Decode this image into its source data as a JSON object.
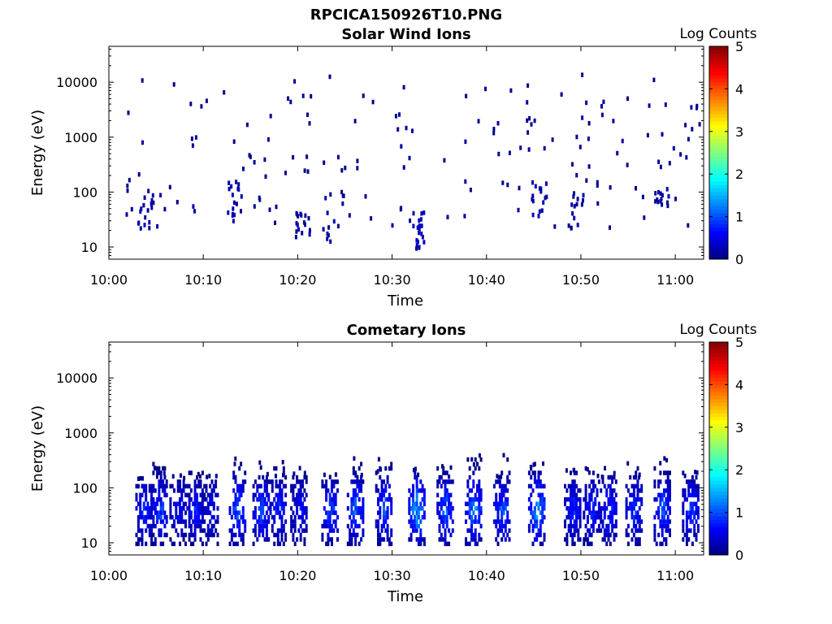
{
  "figure": {
    "title": "RPCICA150926T10.PNG"
  },
  "chart_data": [
    {
      "type": "heatmap",
      "title": "Solar Wind Ions",
      "xlabel": "Time",
      "ylabel": "Energy (eV)",
      "x_ticks": [
        "10:00",
        "10:10",
        "10:20",
        "10:30",
        "10:40",
        "10:50",
        "11:00"
      ],
      "x_range_minutes": [
        0,
        63
      ],
      "y_scale": "log",
      "y_ticks": [
        "10",
        "100",
        "1000",
        "10000"
      ],
      "y_range": [
        6,
        45000
      ],
      "colorbar": {
        "label": "Log Counts",
        "ticks": [
          "0",
          "1",
          "2",
          "3",
          "4",
          "5"
        ],
        "range": [
          0,
          5
        ],
        "colormap": "jet"
      },
      "description_of_values": "Sparse isolated single counts (log value ~0) scattered 10 eV–12000 eV; denser low-level clusters at 10–100 eV near 10:13, 10:21, 10:32, 10:45",
      "clusters": [
        {
          "t": 3.8,
          "emin": 15,
          "emax": 100,
          "level": 0.1,
          "density": 0.5
        },
        {
          "t": 13.2,
          "emin": 25,
          "emax": 170,
          "level": 0.15,
          "density": 0.6
        },
        {
          "t": 20.5,
          "emin": 15,
          "emax": 45,
          "level": 0.1,
          "density": 0.5
        },
        {
          "t": 23.5,
          "emin": 12,
          "emax": 100,
          "level": 0.1,
          "density": 0.5
        },
        {
          "t": 32.5,
          "emin": 9,
          "emax": 45,
          "level": 0.2,
          "density": 0.8
        },
        {
          "t": 45.5,
          "emin": 30,
          "emax": 170,
          "level": 0.15,
          "density": 0.6
        },
        {
          "t": 49.5,
          "emin": 20,
          "emax": 100,
          "level": 0.1,
          "density": 0.4
        },
        {
          "t": 58.5,
          "emin": 40,
          "emax": 120,
          "level": 0.1,
          "density": 0.4
        }
      ],
      "sparse_points": 170
    },
    {
      "type": "heatmap",
      "title": "Cometary Ions",
      "xlabel": "Time",
      "ylabel": "Energy (eV)",
      "x_ticks": [
        "10:00",
        "10:10",
        "10:20",
        "10:30",
        "10:40",
        "10:50",
        "11:00"
      ],
      "x_range_minutes": [
        0,
        63
      ],
      "y_scale": "log",
      "y_ticks": [
        "10",
        "100",
        "1000",
        "10000"
      ],
      "y_range": [
        6,
        45000
      ],
      "colorbar": {
        "label": "Log Counts",
        "ticks": [
          "0",
          "1",
          "2",
          "3",
          "4",
          "5"
        ],
        "range": [
          0,
          5
        ],
        "colormap": "jet"
      },
      "description_of_values": "Periodic bursts of ions roughly every 3 minutes between 10 and ~400 eV; peak log counts ~1.5–2 near 40 eV",
      "bursts": [
        {
          "t": 3.6,
          "emax": 120,
          "peak": 1.0
        },
        {
          "t": 5.2,
          "emax": 300,
          "peak": 1.2
        },
        {
          "t": 7.2,
          "emax": 150,
          "peak": 0.8
        },
        {
          "t": 9.0,
          "emax": 200,
          "peak": 0.9
        },
        {
          "t": 10.6,
          "emax": 150,
          "peak": 0.7
        },
        {
          "t": 13.5,
          "emax": 300,
          "peak": 1.4
        },
        {
          "t": 16.0,
          "emax": 250,
          "peak": 1.2
        },
        {
          "t": 17.8,
          "emax": 250,
          "peak": 1.0
        },
        {
          "t": 20.0,
          "emax": 200,
          "peak": 0.8
        },
        {
          "t": 23.3,
          "emax": 150,
          "peak": 1.2
        },
        {
          "t": 26.0,
          "emax": 350,
          "peak": 1.4
        },
        {
          "t": 29.0,
          "emax": 300,
          "peak": 1.3
        },
        {
          "t": 32.5,
          "emax": 200,
          "peak": 1.9
        },
        {
          "t": 35.5,
          "emax": 300,
          "peak": 1.4
        },
        {
          "t": 38.5,
          "emax": 350,
          "peak": 1.6
        },
        {
          "t": 41.5,
          "emax": 450,
          "peak": 1.3
        },
        {
          "t": 45.2,
          "emax": 350,
          "peak": 1.8
        },
        {
          "t": 49.0,
          "emax": 200,
          "peak": 1.0
        },
        {
          "t": 51.0,
          "emax": 250,
          "peak": 1.0
        },
        {
          "t": 52.8,
          "emax": 200,
          "peak": 1.1
        },
        {
          "t": 55.5,
          "emax": 250,
          "peak": 1.1
        },
        {
          "t": 58.5,
          "emax": 300,
          "peak": 1.3
        },
        {
          "t": 61.5,
          "emax": 200,
          "peak": 1.2
        }
      ]
    }
  ]
}
